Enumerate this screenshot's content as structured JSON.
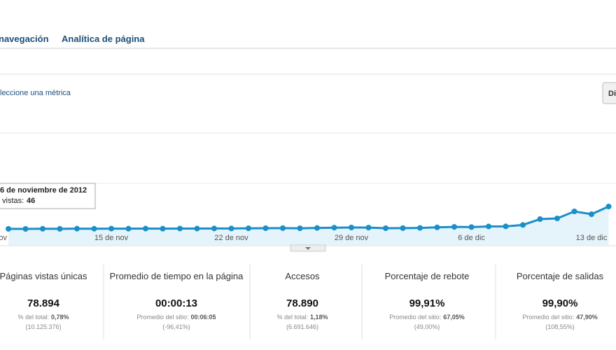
{
  "nav": [
    "navegación",
    "Analítica de página"
  ],
  "metric_selector": "leccione una métrica",
  "button": "Di",
  "chart_data": {
    "type": "line",
    "color": "#1a8fc9",
    "categories": [
      "ov",
      null,
      null,
      null,
      null,
      null,
      "15 de nov",
      null,
      null,
      null,
      null,
      null,
      null,
      "22 de nov",
      null,
      null,
      null,
      null,
      null,
      null,
      "29 de nov",
      null,
      null,
      null,
      null,
      null,
      null,
      "6 de dic",
      null,
      null,
      null,
      null,
      null,
      null,
      "13 de dic",
      null
    ],
    "values": [
      46,
      45,
      48,
      47,
      50,
      49,
      51,
      50,
      52,
      50,
      53,
      52,
      55,
      54,
      58,
      60,
      62,
      58,
      65,
      72,
      75,
      73,
      60,
      62,
      66,
      78,
      88,
      84,
      98,
      100,
      130,
      255,
      270,
      420,
      360,
      525
    ],
    "tooltip": {
      "date": "6 de noviembre de 2012",
      "label": "vistas:"
    }
  },
  "metrics": [
    {
      "label": "Páginas vistas únicas",
      "value": "78.894",
      "sub_label": "% del total:",
      "sub_value": "0,78%",
      "detail": "(10.125.376)"
    },
    {
      "label": "Promedio de tiempo en la página",
      "value": "00:00:13",
      "sub_label": "Promedio del sitio:",
      "sub_value": "00:06:05",
      "detail": "(-96,41%)"
    },
    {
      "label": "Accesos",
      "value": "78.890",
      "sub_label": "% del total:",
      "sub_value": "1,18%",
      "detail": "(6.691.646)"
    },
    {
      "label": "Porcentaje de rebote",
      "value": "99,91%",
      "sub_label": "Promedio del sitio:",
      "sub_value": "67,05%",
      "detail": "(49,00%)"
    },
    {
      "label": "Porcentaje de salidas",
      "value": "99,90%",
      "sub_label": "Promedio del sitio:",
      "sub_value": "47,90%",
      "detail": "(108,55%)"
    }
  ]
}
